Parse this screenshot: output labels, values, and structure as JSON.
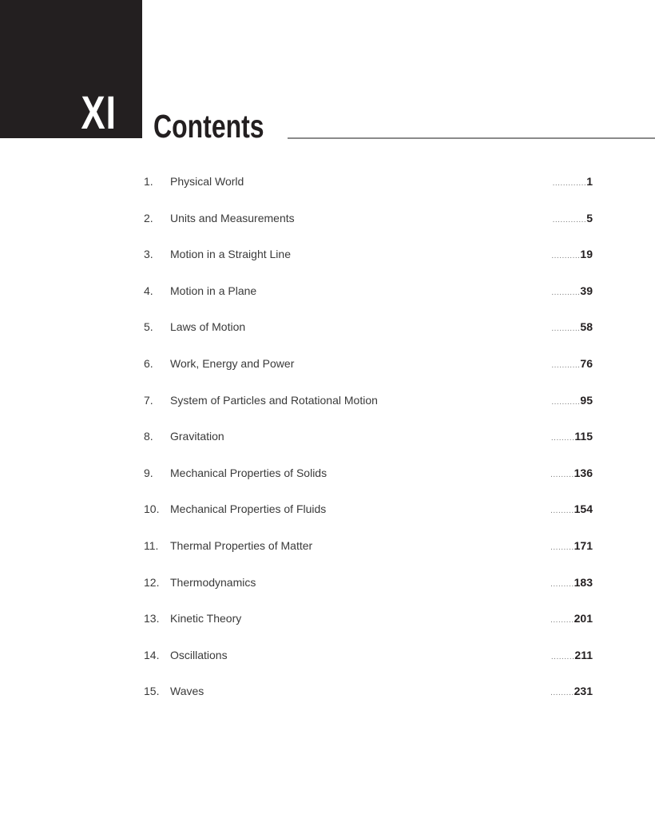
{
  "header": {
    "roman": "XI",
    "title": "Contents"
  },
  "entries": [
    {
      "num": "1.",
      "title": "Physical World",
      "page": "1",
      "dots": "............."
    },
    {
      "num": "2.",
      "title": "Units and Measurements",
      "page": "5",
      "dots": "............."
    },
    {
      "num": "3.",
      "title": "Motion in a Straight Line",
      "page": "19",
      "dots": "..........."
    },
    {
      "num": "4.",
      "title": "Motion in a Plane",
      "page": "39",
      "dots": "..........."
    },
    {
      "num": "5.",
      "title": "Laws of Motion",
      "page": "58",
      "dots": "..........."
    },
    {
      "num": "6.",
      "title": "Work, Energy and Power",
      "page": "76",
      "dots": "..........."
    },
    {
      "num": "7.",
      "title": "System of Particles and Rotational Motion",
      "page": "95",
      "dots": "..........."
    },
    {
      "num": "8.",
      "title": "Gravitation",
      "page": "115",
      "dots": "........."
    },
    {
      "num": "9.",
      "title": "Mechanical Properties of Solids",
      "page": "136",
      "dots": "........."
    },
    {
      "num": "10.",
      "title": "Mechanical Properties of Fluids",
      "page": "154",
      "dots": "........."
    },
    {
      "num": "11.",
      "title": "Thermal Properties of Matter",
      "page": "171",
      "dots": "........."
    },
    {
      "num": "12.",
      "title": "Thermodynamics",
      "page": "183",
      "dots": "........."
    },
    {
      "num": "13.",
      "title": "Kinetic Theory",
      "page": "201",
      "dots": "........."
    },
    {
      "num": "14.",
      "title": "Oscillations",
      "page": "211",
      "dots": "........."
    },
    {
      "num": "15.",
      "title": "Waves",
      "page": "231",
      "dots": "........."
    }
  ]
}
